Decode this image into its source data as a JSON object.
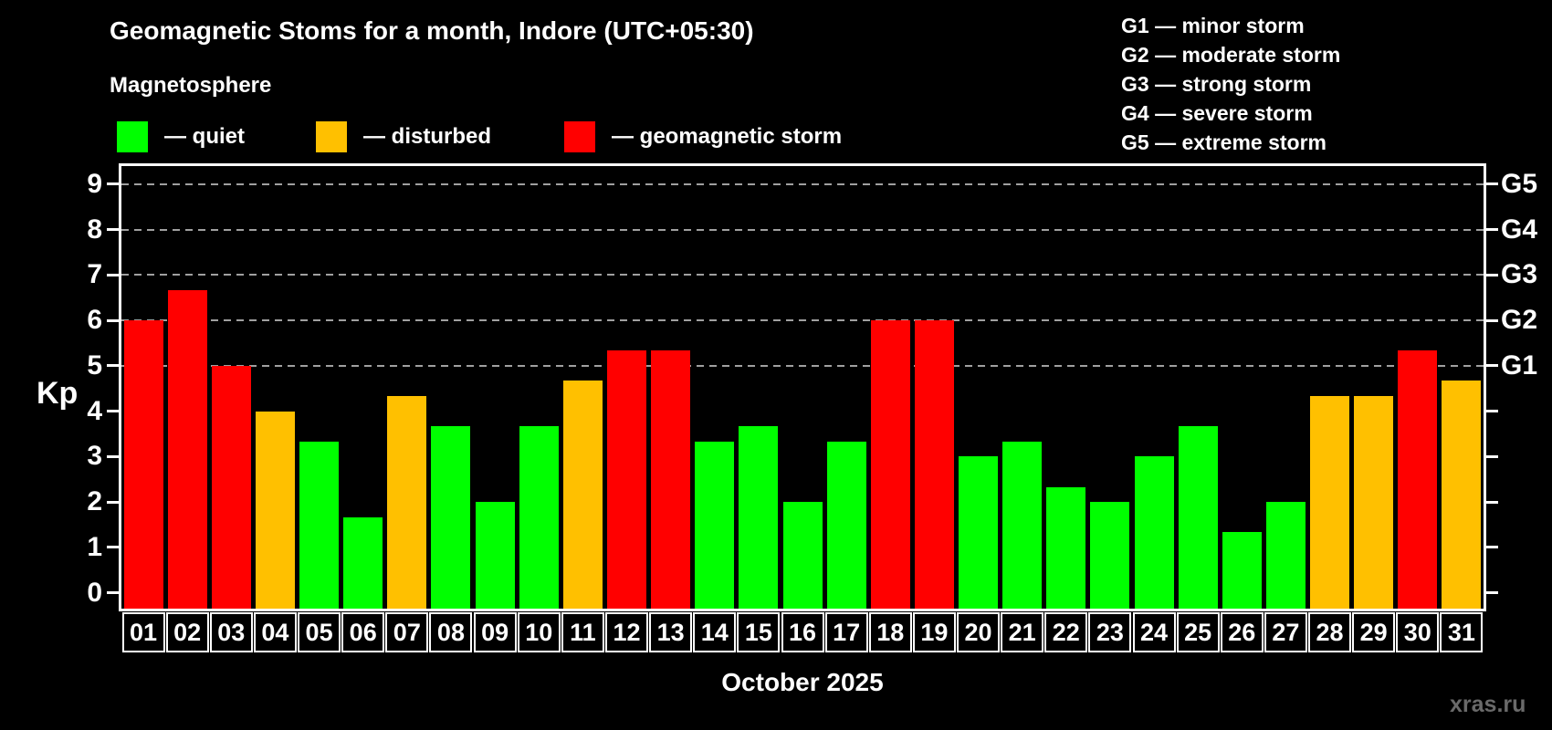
{
  "header": {
    "title": "Geomagnetic Stoms for a month, Indore (UTC+05:30)",
    "subtitle": "Magnetosphere",
    "legend": [
      {
        "key": "quiet",
        "label": "— quiet",
        "color": "#00ff00"
      },
      {
        "key": "disturbed",
        "label": "— disturbed",
        "color": "#ffc000"
      },
      {
        "key": "storm",
        "label": "— geomagnetic storm",
        "color": "#ff0000"
      }
    ],
    "g_legend": [
      {
        "label": "G1 — minor storm"
      },
      {
        "label": "G2 — moderate storm"
      },
      {
        "label": "G3 — strong storm"
      },
      {
        "label": "G4 — severe storm"
      },
      {
        "label": "G5 — extreme storm"
      }
    ]
  },
  "chart_data": {
    "type": "bar",
    "title": "Geomagnetic Stoms for a month, Indore (UTC+05:30)",
    "subtitle": "Magnetosphere",
    "xlabel": "October 2025",
    "ylabel": "Kp",
    "ylim": [
      -0.35,
      9.4
    ],
    "yticks": [
      0,
      1,
      2,
      3,
      4,
      5,
      6,
      7,
      8,
      9
    ],
    "gridlines_at": [
      5,
      6,
      7,
      8,
      9
    ],
    "grid_style": "dashed horizontal gray lines only at storm levels Kp 5-9",
    "right_axis_labels": [
      {
        "kp": 5,
        "label": "G1"
      },
      {
        "kp": 6,
        "label": "G2"
      },
      {
        "kp": 7,
        "label": "G3"
      },
      {
        "kp": 8,
        "label": "G4"
      },
      {
        "kp": 9,
        "label": "G5"
      }
    ],
    "legend_position": "top-left",
    "categories": [
      "01",
      "02",
      "03",
      "04",
      "05",
      "06",
      "07",
      "08",
      "09",
      "10",
      "11",
      "12",
      "13",
      "14",
      "15",
      "16",
      "17",
      "18",
      "19",
      "20",
      "21",
      "22",
      "23",
      "24",
      "25",
      "26",
      "27",
      "28",
      "29",
      "30",
      "31"
    ],
    "series": [
      {
        "name": "Kp index",
        "values": [
          6.0,
          6.67,
          5.0,
          4.0,
          3.33,
          1.67,
          4.33,
          3.67,
          2.0,
          3.67,
          4.67,
          5.33,
          5.33,
          3.33,
          3.67,
          2.0,
          3.33,
          6.0,
          6.0,
          3.0,
          3.33,
          2.33,
          2.0,
          3.0,
          3.67,
          1.33,
          2.0,
          4.33,
          4.33,
          5.33,
          4.67
        ]
      }
    ],
    "statuses": [
      "storm",
      "storm",
      "storm",
      "disturbed",
      "quiet",
      "quiet",
      "disturbed",
      "quiet",
      "quiet",
      "quiet",
      "disturbed",
      "storm",
      "storm",
      "quiet",
      "quiet",
      "quiet",
      "quiet",
      "storm",
      "storm",
      "quiet",
      "quiet",
      "quiet",
      "quiet",
      "quiet",
      "quiet",
      "quiet",
      "quiet",
      "disturbed",
      "disturbed",
      "storm",
      "disturbed"
    ],
    "colors": {
      "quiet": "#00ff00",
      "disturbed": "#ffc000",
      "storm": "#ff0000"
    }
  },
  "footer": {
    "xaxis_title": "October 2025",
    "watermark": "xras.ru"
  }
}
